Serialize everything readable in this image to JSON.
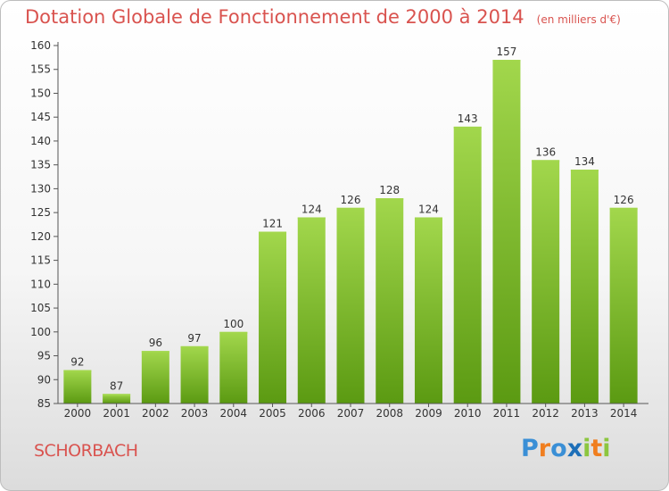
{
  "header": {
    "title": "Dotation Globale de Fonctionnement de 2000 à 2014",
    "unit": "(en milliers d'€)"
  },
  "footer": {
    "commune": "SCHORBACH",
    "logo_text": "Proxiti",
    "logo_icon": "proxiti-logo"
  },
  "colors": {
    "title": "#d9534f",
    "bar_light": "#a2d74c",
    "bar_dark": "#5b9a12",
    "axis": "#555555",
    "grid": "#e0e0e0",
    "logo": [
      "#3a8fd6",
      "#f07e1f",
      "#3a8fd6",
      "#1d6fb8",
      "#8cc63f",
      "#f07e1f",
      "#8cc63f"
    ]
  },
  "chart_data": {
    "type": "bar",
    "categories": [
      "2000",
      "2001",
      "2002",
      "2003",
      "2004",
      "2005",
      "2006",
      "2007",
      "2008",
      "2009",
      "2010",
      "2011",
      "2012",
      "2013",
      "2014"
    ],
    "values": [
      92,
      87,
      96,
      97,
      100,
      121,
      124,
      126,
      128,
      124,
      143,
      157,
      136,
      134,
      126
    ],
    "title": "Dotation Globale de Fonctionnement de 2000 à 2014",
    "subtitle": "(en milliers d'€)",
    "xlabel": "",
    "ylabel": "",
    "ylim": [
      85,
      160
    ],
    "yticks": [
      85,
      90,
      95,
      100,
      105,
      110,
      115,
      120,
      125,
      130,
      135,
      140,
      145,
      150,
      155,
      160
    ],
    "grid": false,
    "data_labels": true
  }
}
